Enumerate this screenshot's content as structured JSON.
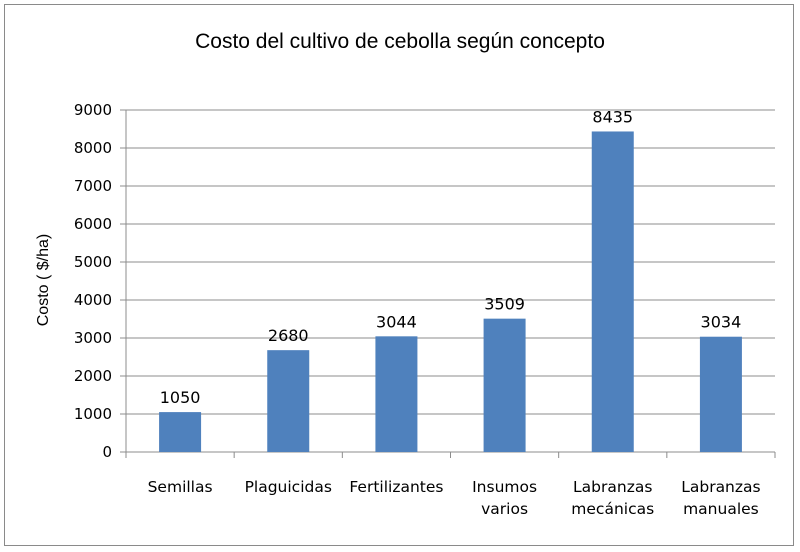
{
  "chart_data": {
    "type": "bar",
    "title": "Costo del cultivo de cebolla según concepto",
    "xlabel": "",
    "ylabel": "Costo ( $/ha)",
    "categories": [
      [
        "Semillas"
      ],
      [
        "Plaguicidas"
      ],
      [
        "Fertilizantes"
      ],
      [
        "Insumos",
        "varios"
      ],
      [
        "Labranzas",
        "mecánicas"
      ],
      [
        "Labranzas",
        "manuales"
      ]
    ],
    "values": [
      1050,
      2680,
      3044,
      3509,
      8435,
      3034
    ],
    "ylim": [
      0,
      9000
    ],
    "yticks": [
      0,
      1000,
      2000,
      3000,
      4000,
      5000,
      6000,
      7000,
      8000,
      9000
    ],
    "grid": true,
    "legend": "none",
    "bar_color": "#4f81bd",
    "grid_color": "#8c8c8c"
  }
}
